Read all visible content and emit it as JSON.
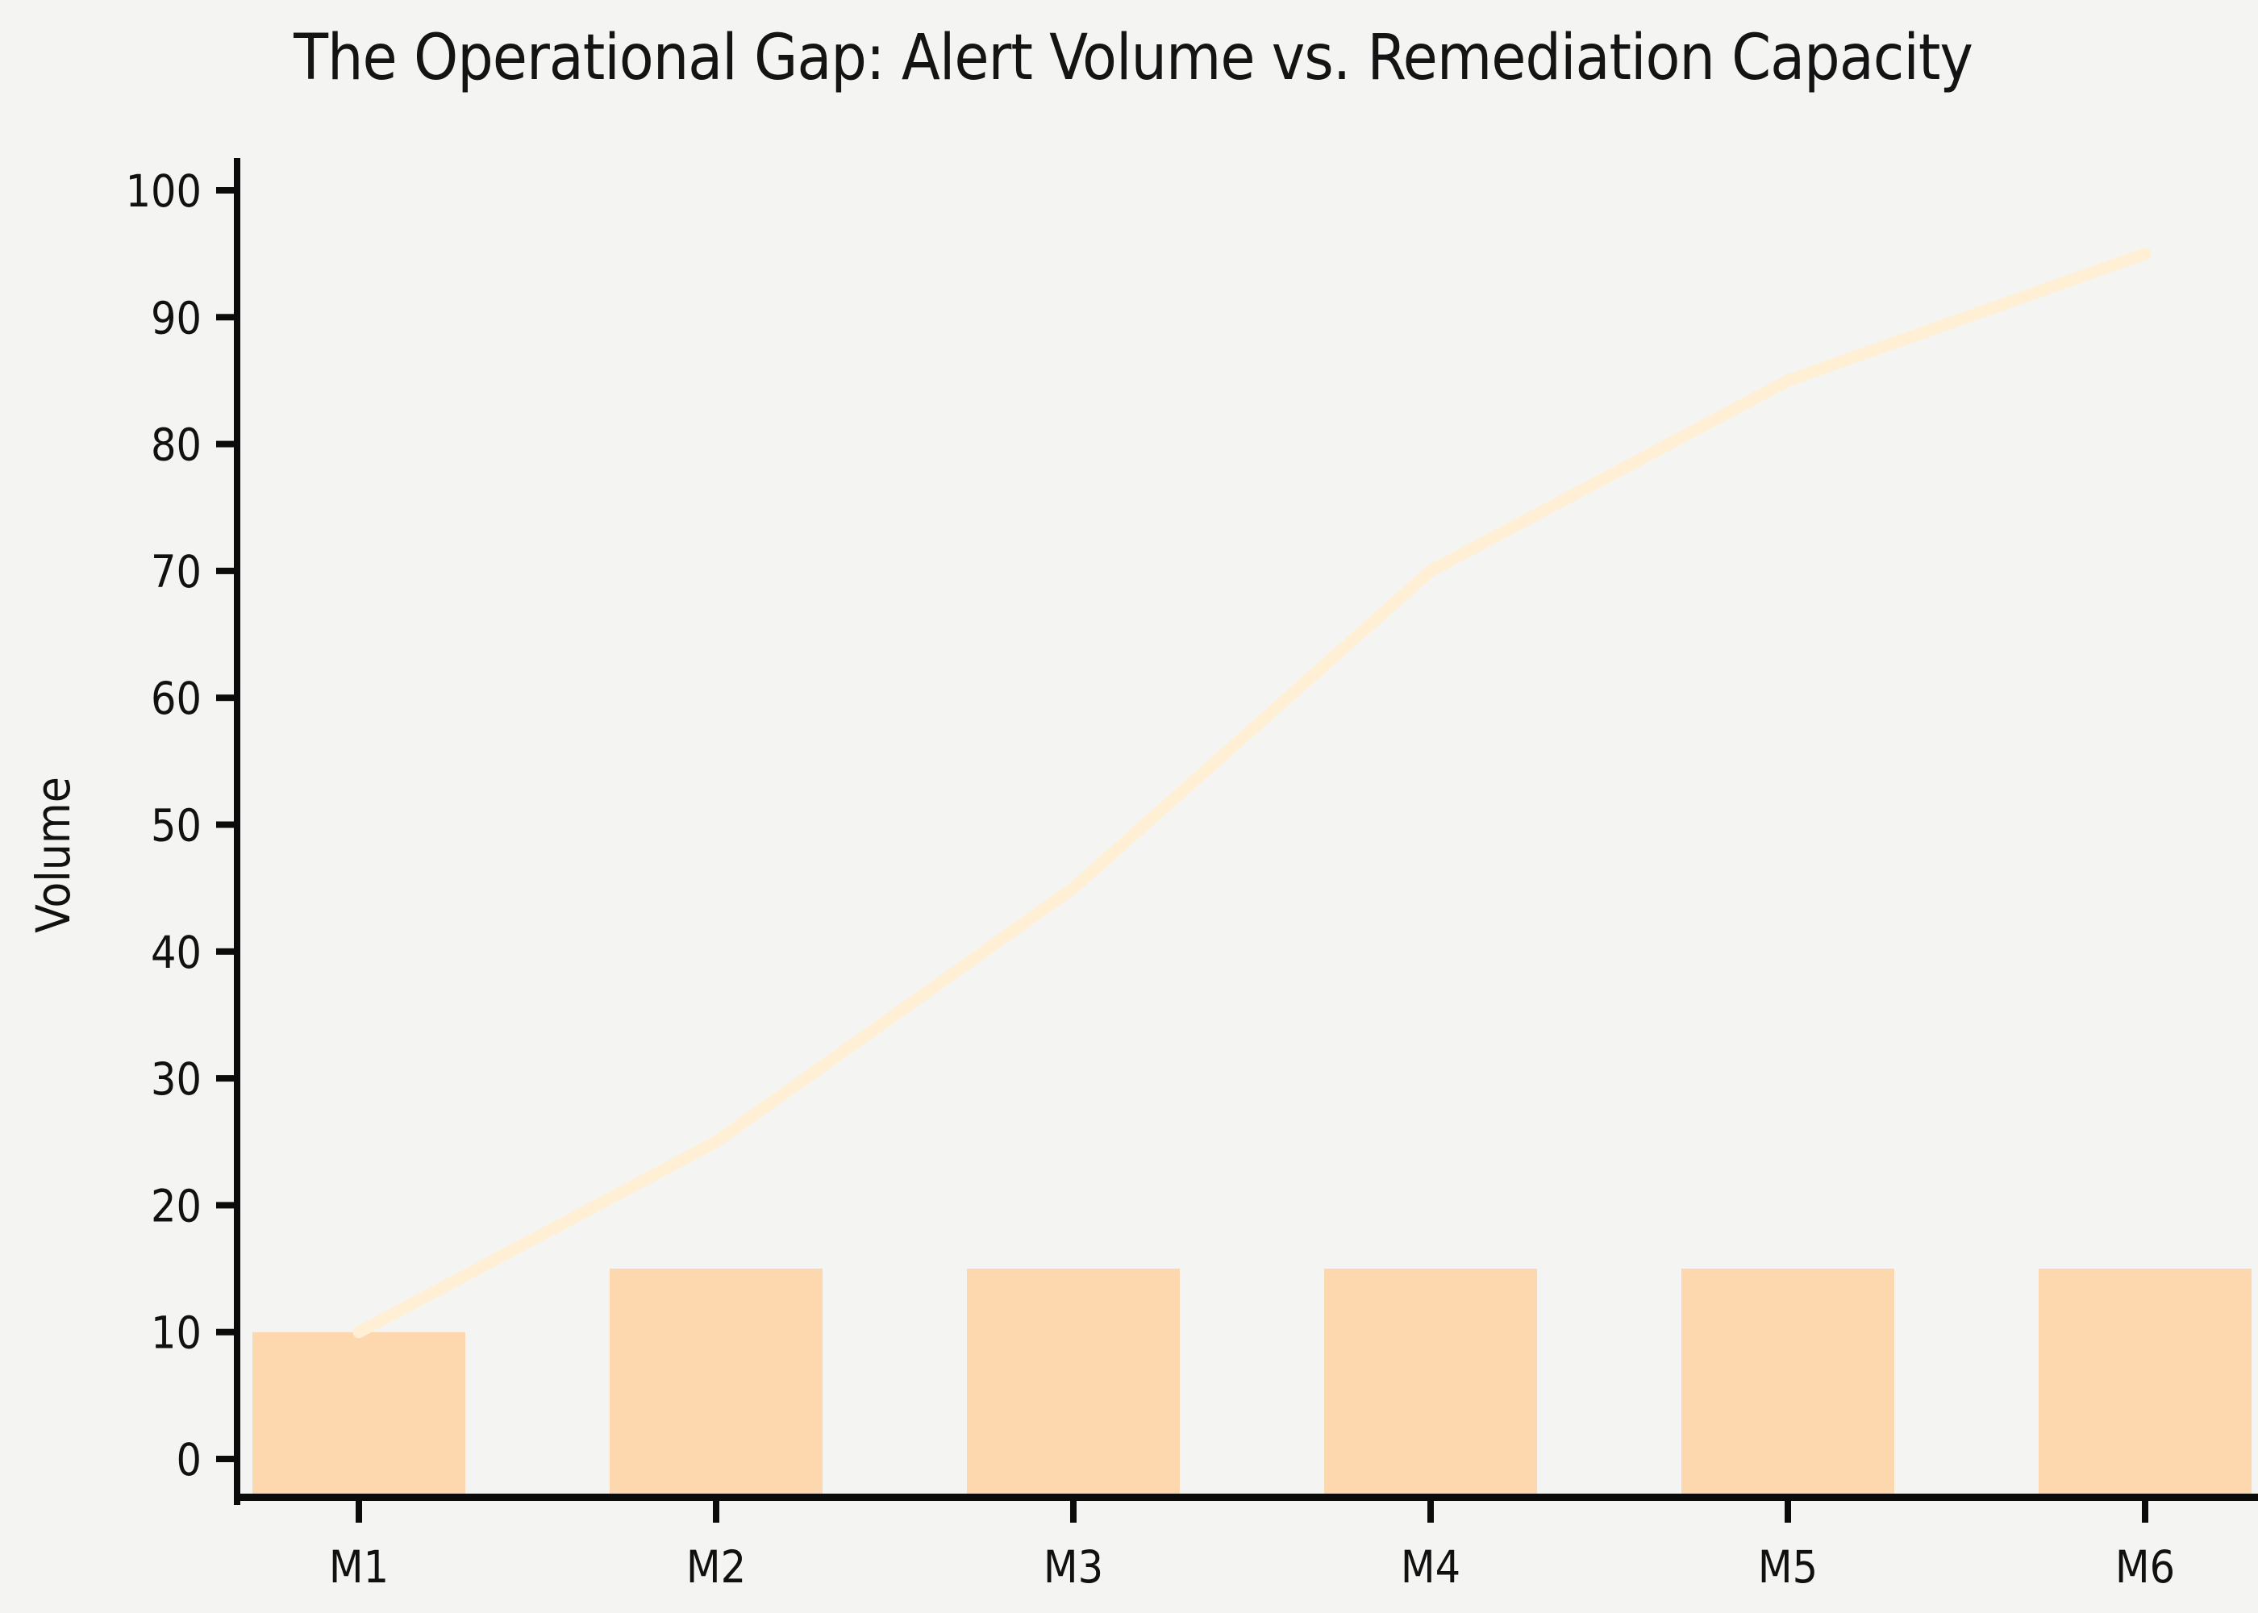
{
  "figure": {
    "title": "The Operational Gap: Alert Volume vs. Remediation Capacity",
    "ylabel": "Volume"
  },
  "chart_data": {
    "type": "bar",
    "title": "The Operational Gap: Alert Volume vs. Remediation Capacity",
    "categories": [
      "M1",
      "M2",
      "M3",
      "M4",
      "M5",
      "M6"
    ],
    "series": [
      {
        "name": "Remediation Capacity",
        "type": "bar",
        "values": [
          10,
          15,
          15,
          15,
          15,
          15
        ],
        "color": "#FDD7AE"
      },
      {
        "name": "Alert Volume",
        "type": "line",
        "values": [
          10,
          25,
          45,
          70,
          85,
          95
        ],
        "color": "#FFF0D5"
      }
    ],
    "xlabel": "",
    "ylabel": "Volume",
    "ylim": [
      0,
      100
    ],
    "yticks": [
      0,
      10,
      20,
      30,
      40,
      50,
      60,
      70,
      80,
      90,
      100
    ],
    "grid": false,
    "legend": "none",
    "background": "#F4F4F2",
    "axis_color": "#0B0B0B",
    "text_color": "#111111"
  }
}
